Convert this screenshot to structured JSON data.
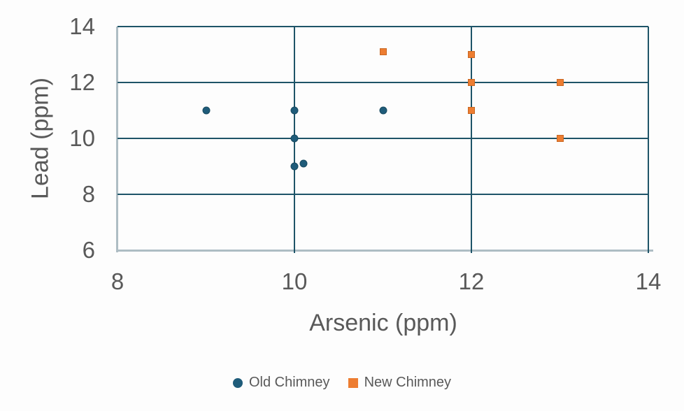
{
  "chart_data": {
    "type": "scatter",
    "title": "",
    "xlabel": "Arsenic (ppm)",
    "ylabel": "Lead (ppm)",
    "xlim": [
      8,
      14
    ],
    "ylim": [
      6,
      14
    ],
    "x_ticks": [
      8,
      10,
      12,
      14
    ],
    "y_ticks": [
      6,
      8,
      10,
      12,
      14
    ],
    "grid": true,
    "legend_position": "bottom",
    "series": [
      {
        "name": "Old Chimney",
        "marker": "circle",
        "color": "#1F5C7A",
        "points": [
          [
            9,
            11
          ],
          [
            10,
            11
          ],
          [
            10,
            10
          ],
          [
            10,
            9
          ],
          [
            10.1,
            9.1
          ],
          [
            11,
            11
          ]
        ]
      },
      {
        "name": "New Chimney",
        "marker": "square",
        "color": "#ED7D31",
        "points": [
          [
            11,
            13.1
          ],
          [
            12,
            13
          ],
          [
            12,
            12
          ],
          [
            12,
            11
          ],
          [
            13,
            12
          ],
          [
            13,
            10
          ]
        ]
      }
    ]
  },
  "colors": {
    "gridline": "#1E5468",
    "axis_line": "#AEBDC4",
    "tick_text": "#595959",
    "background": "#FDFDFD"
  }
}
